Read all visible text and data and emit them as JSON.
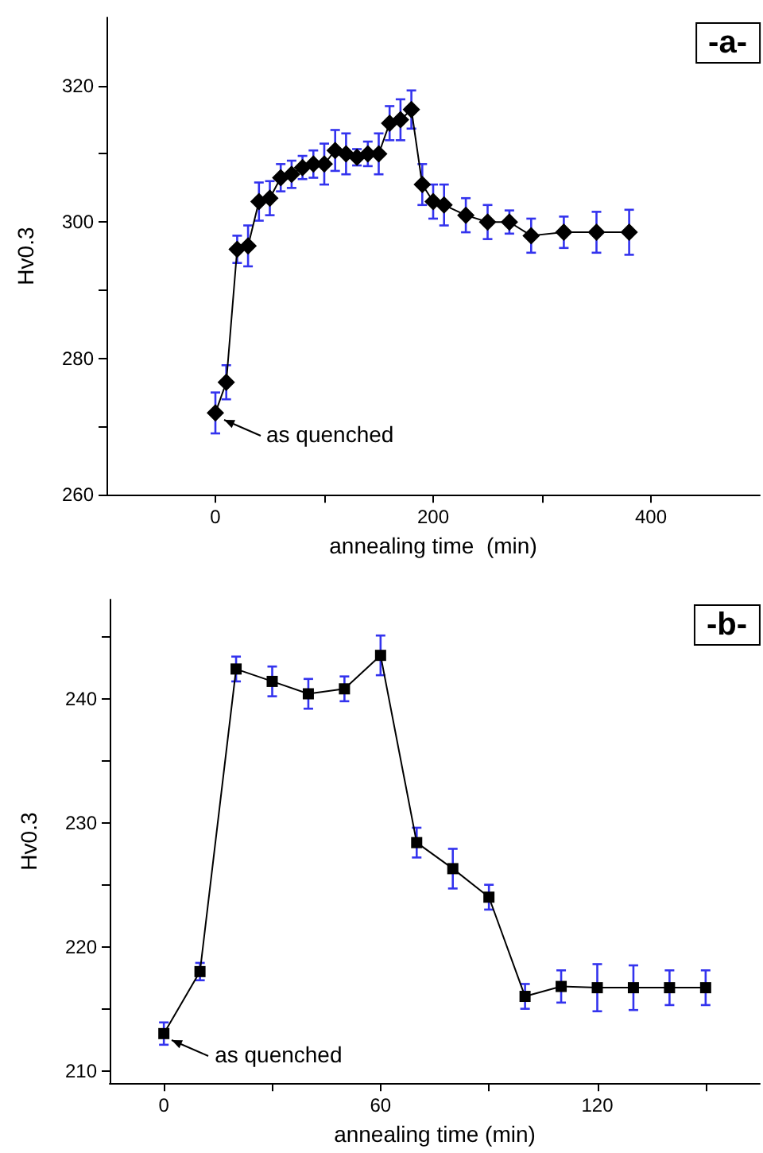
{
  "chart_data": [
    {
      "type": "line",
      "title": "-a-",
      "xlabel": "annealing time  (min)",
      "ylabel": "Hv0.3",
      "marker": "diamond",
      "line_style": "solid",
      "grid": false,
      "xlim": [
        -100,
        500
      ],
      "xticks": [
        0,
        {
          "value": 100,
          "label": null
        },
        200,
        {
          "value": 300,
          "label": null
        },
        400
      ],
      "ylim": [
        260,
        330
      ],
      "yticks": [
        260,
        {
          "value": 270,
          "label": null
        },
        280,
        {
          "value": 290,
          "label": null
        },
        300,
        {
          "value": 310,
          "label": null
        },
        320
      ],
      "annotations": [
        {
          "text": "as quenched",
          "x": 0,
          "y": 272
        }
      ],
      "series": [
        {
          "color": "#000000",
          "x": [
            0,
            10,
            20,
            30,
            40,
            50,
            60,
            70,
            80,
            90,
            100,
            110,
            120,
            130,
            140,
            150,
            160,
            170,
            180,
            190,
            200,
            210,
            230,
            250,
            270,
            290,
            320,
            350,
            380
          ],
          "values": [
            272,
            276.5,
            296,
            296.5,
            303,
            303.5,
            306.5,
            307,
            308,
            308.5,
            308.5,
            310.5,
            310,
            309.5,
            310,
            310,
            314.5,
            315,
            316.5,
            305.5,
            303,
            302.5,
            301,
            300,
            300,
            298,
            298.5,
            298.5,
            298.5
          ],
          "errors": [
            3,
            2.5,
            2,
            3,
            2.8,
            2.5,
            2,
            2,
            1.7,
            2,
            3,
            3,
            3,
            1.2,
            1.8,
            3,
            2.5,
            3,
            2.8,
            3,
            2.5,
            3,
            2.5,
            2.5,
            1.7,
            2.5,
            2.3,
            3,
            3.3
          ]
        }
      ]
    },
    {
      "type": "line",
      "title": "-b-",
      "xlabel": "annealing time (min)",
      "ylabel": "Hv0.3",
      "marker": "square",
      "line_style": "solid",
      "grid": false,
      "xlim": [
        -15,
        165
      ],
      "xticks": [
        0,
        {
          "value": 30,
          "label": null
        },
        60,
        {
          "value": 90,
          "label": null
        },
        120,
        {
          "value": 150,
          "label": null
        }
      ],
      "ylim": [
        209,
        248
      ],
      "yticks": [
        210,
        {
          "value": 215,
          "label": null
        },
        220,
        {
          "value": 225,
          "label": null
        },
        230,
        {
          "value": 235,
          "label": null
        },
        240,
        {
          "value": 245,
          "label": null
        }
      ],
      "annotations": [
        {
          "text": "as quenched",
          "x": 0,
          "y": 213
        }
      ],
      "series": [
        {
          "color": "#000000",
          "x": [
            0,
            10,
            20,
            30,
            40,
            50,
            60,
            70,
            80,
            90,
            100,
            110,
            120,
            130,
            140,
            150
          ],
          "values": [
            213,
            218,
            242.4,
            241.4,
            240.4,
            240.8,
            243.5,
            228.4,
            226.3,
            224,
            216,
            216.8,
            216.7,
            216.7,
            216.7,
            216.7
          ],
          "errors": [
            0.9,
            0.7,
            1,
            1.2,
            1.2,
            1,
            1.6,
            1.2,
            1.6,
            1,
            1,
            1.3,
            1.9,
            1.8,
            1.4,
            1.4
          ]
        }
      ]
    }
  ]
}
